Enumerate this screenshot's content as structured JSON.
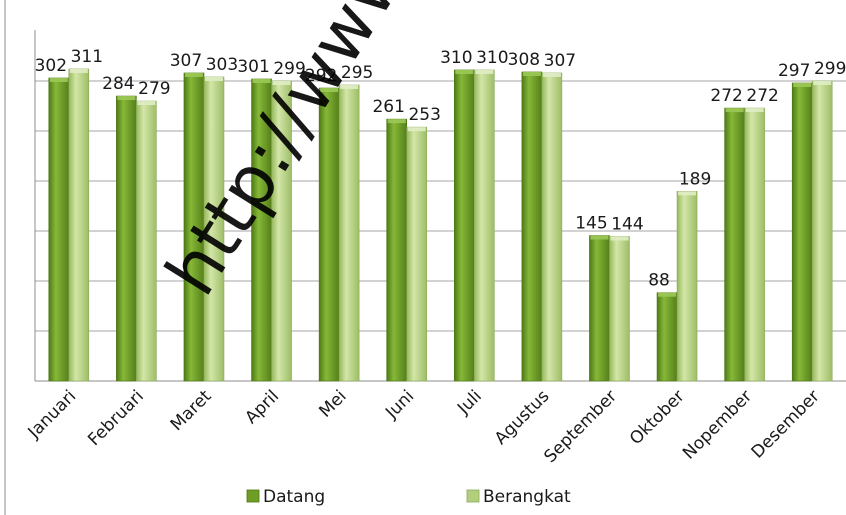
{
  "chart_data": {
    "type": "bar",
    "categories": [
      "Januari",
      "Februari",
      "Maret",
      "April",
      "Mei",
      "Juni",
      "Juli",
      "Agustus",
      "September",
      "Oktober",
      "Nopember",
      "Desember"
    ],
    "series": [
      {
        "name": "Datang",
        "values": [
          302,
          284,
          307,
          301,
          292,
          261,
          310,
          308,
          145,
          88,
          272,
          297
        ],
        "color": "#6e9e26"
      },
      {
        "name": "Berangkat",
        "values": [
          311,
          279,
          303,
          299,
          295,
          253,
          310,
          307,
          144,
          189,
          272,
          299
        ],
        "color": "#b3cf7c"
      }
    ],
    "value_labels": [
      [
        "302",
        "284",
        "307",
        "301",
        "292",
        "261",
        "310",
        "308",
        "145",
        "88",
        "272",
        "297"
      ],
      [
        "311",
        "279",
        "303",
        "299",
        "295",
        "253",
        "310",
        "307",
        "144",
        "189",
        "272",
        "299"
      ]
    ],
    "ylim": [
      0,
      300
    ],
    "grid": true,
    "legend_position": "bottom"
  },
  "watermark": "http://www.be"
}
